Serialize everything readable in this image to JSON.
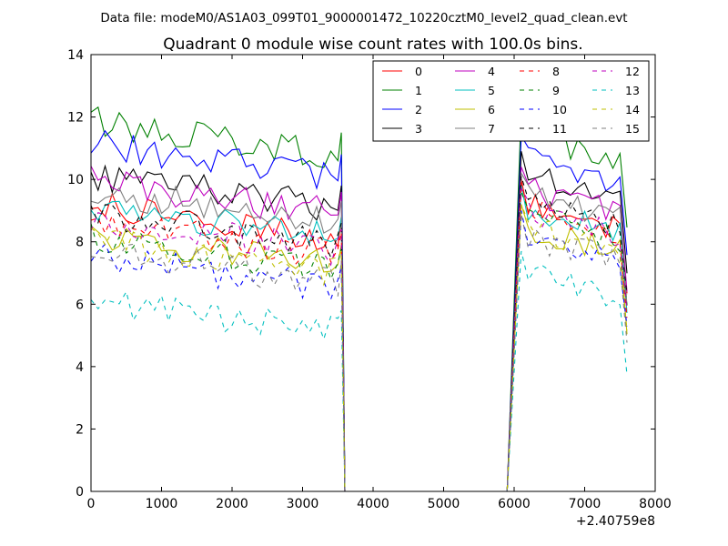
{
  "chart_data": {
    "type": "line",
    "suptitle": "Data file: modeM0/AS1A03_099T01_9000001472_10220cztM0_level2_quad_clean.evt",
    "title": "Quadrant 0 module wise count rates with 100.0s bins.",
    "xlabel": "",
    "ylabel": "",
    "x_offset_label": "+2.40759e8",
    "xlim": [
      0,
      8000
    ],
    "ylim": [
      0,
      14
    ],
    "xticks": [
      "0",
      "1000",
      "2000",
      "3000",
      "4000",
      "5000",
      "6000",
      "7000",
      "8000"
    ],
    "yticks": [
      "0",
      "2",
      "4",
      "6",
      "8",
      "10",
      "12",
      "14"
    ],
    "legend_position": "top-right",
    "segments": [
      {
        "start": 0,
        "step": 100,
        "count": 36
      },
      {
        "start": 6100,
        "step": 100,
        "count": 16
      }
    ],
    "transitions": [
      {
        "from_x": 3550,
        "to_x": 3600,
        "to_y": 0
      },
      {
        "from_x": 5900,
        "to_x": 6100,
        "from_y": 0
      }
    ],
    "series": [
      {
        "name": "0",
        "color": "#ff0000",
        "style": "solid",
        "level1": 8.6,
        "level2": 8.8
      },
      {
        "name": "1",
        "color": "#008000",
        "style": "solid",
        "level1": 11.3,
        "level2": 11.0
      },
      {
        "name": "2",
        "color": "#0000ff",
        "style": "solid",
        "level1": 10.6,
        "level2": 10.2
      },
      {
        "name": "3",
        "color": "#000000",
        "style": "solid",
        "level1": 9.6,
        "level2": 9.7
      },
      {
        "name": "4",
        "color": "#bf00bf",
        "style": "solid",
        "level1": 9.4,
        "level2": 9.2
      },
      {
        "name": "5",
        "color": "#00bfbf",
        "style": "solid",
        "level1": 8.6,
        "level2": 8.6
      },
      {
        "name": "6",
        "color": "#bfbf00",
        "style": "solid",
        "level1": 7.7,
        "level2": 8.0
      },
      {
        "name": "7",
        "color": "#7f7f7f",
        "style": "solid",
        "level1": 9.1,
        "level2": 9.0
      },
      {
        "name": "8",
        "color": "#ff0000",
        "style": "dashed",
        "level1": 8.1,
        "level2": 8.7
      },
      {
        "name": "9",
        "color": "#008000",
        "style": "dashed",
        "level1": 7.6,
        "level2": 8.4
      },
      {
        "name": "10",
        "color": "#0000ff",
        "style": "dashed",
        "level1": 7.0,
        "level2": 7.8
      },
      {
        "name": "11",
        "color": "#000000",
        "style": "dashed",
        "level1": 8.4,
        "level2": 8.9
      },
      {
        "name": "12",
        "color": "#bf00bf",
        "style": "dashed",
        "level1": 8.2,
        "level2": 8.5
      },
      {
        "name": "13",
        "color": "#00bfbf",
        "style": "dashed",
        "level1": 5.6,
        "level2": 6.5
      },
      {
        "name": "14",
        "color": "#bfbf00",
        "style": "dashed",
        "level1": 7.5,
        "level2": 8.0
      },
      {
        "name": "15",
        "color": "#7f7f7f",
        "style": "dashed",
        "level1": 7.2,
        "level2": 7.7
      }
    ]
  }
}
